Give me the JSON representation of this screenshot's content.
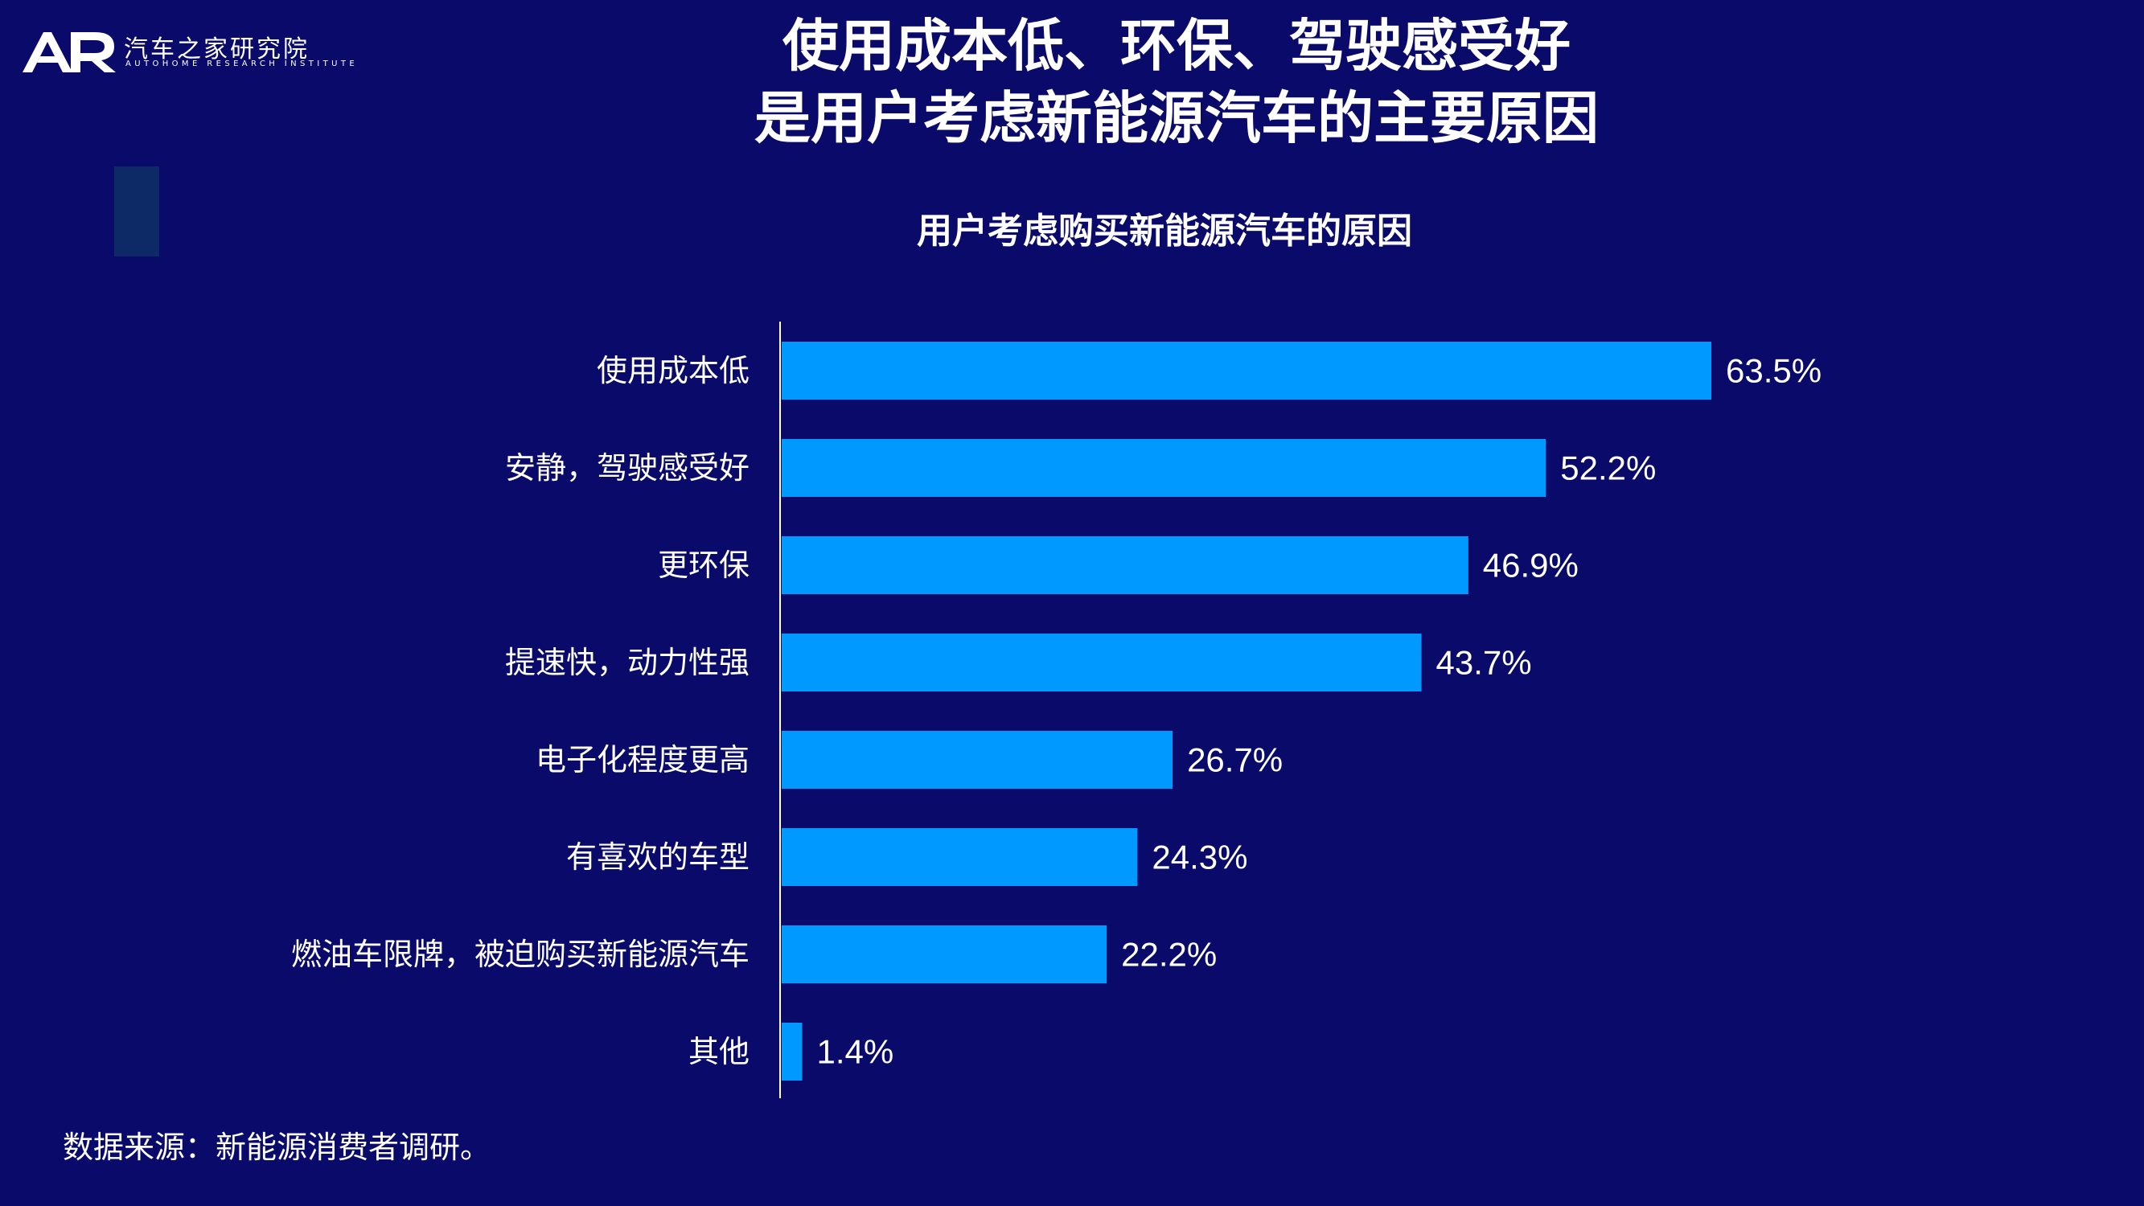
{
  "logo": {
    "mark": "AR",
    "name_cn": "汽车之家研究院",
    "name_en": "AUTOHOME RESEARCH INSTITUTE"
  },
  "title_line1": "使用成本低、环保、驾驶感受好",
  "title_line2": "是用户考虑新能源汽车的主要原因",
  "source": "数据来源：新能源消费者调研。",
  "colors": {
    "background": "#0a0a6b",
    "bar": "#0099ff",
    "text": "#ffffff",
    "axis": "#ffffff"
  },
  "chart_data": {
    "type": "bar",
    "orientation": "horizontal",
    "title": "用户考虑购买新能源汽车的原因",
    "categories": [
      "使用成本低",
      "安静，驾驶感受好",
      "更环保",
      "提速快，动力性强",
      "电子化程度更高",
      "有喜欢的车型",
      "燃油车限牌，被迫购买新能源汽车",
      "其他"
    ],
    "values": [
      63.5,
      52.2,
      46.9,
      43.7,
      26.7,
      24.3,
      22.2,
      1.4
    ],
    "labels": [
      "63.5%",
      "52.2%",
      "46.9%",
      "43.7%",
      "26.7%",
      "24.3%",
      "22.2%",
      "1.4%"
    ],
    "value_unit": "%",
    "xlabel": "",
    "ylabel": "",
    "grid": false,
    "legend": "none"
  }
}
